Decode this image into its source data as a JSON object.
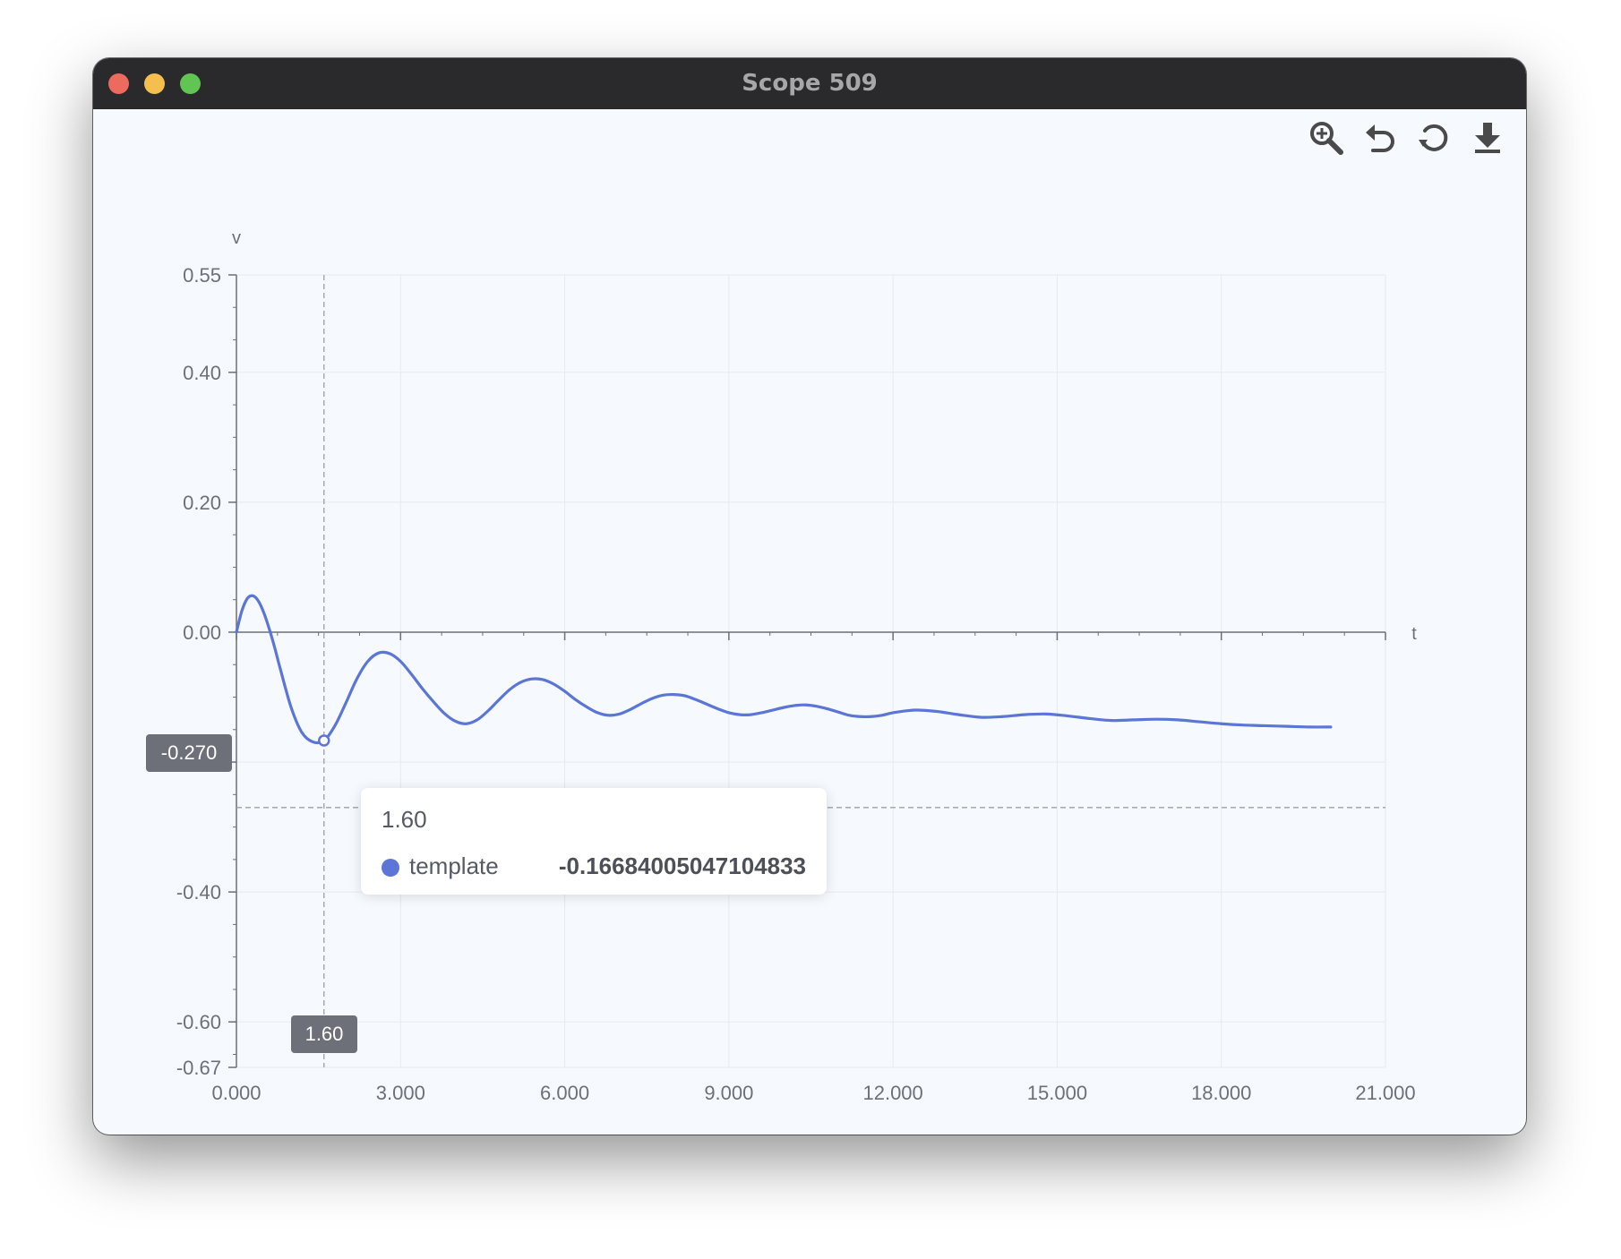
{
  "window": {
    "title": "Scope 509"
  },
  "toolbar": {
    "icons": [
      "zoom-in-icon",
      "undo-icon",
      "restore-icon",
      "download-icon"
    ]
  },
  "tooltip": {
    "title": "1.60",
    "series_name": "template",
    "value": "-0.16684005047104833"
  },
  "crosshair": {
    "x_label": "1.60",
    "y_label": "-0.270",
    "x_value": 1.6,
    "y_value": -0.27
  },
  "colors": {
    "series": "#5b76d6",
    "axis": "#6e7079",
    "titlebar": "#2a2a2c",
    "background": "#f6f9fd"
  },
  "chart_data": {
    "type": "line",
    "xlabel": "t",
    "ylabel": "v",
    "xlim": [
      0,
      21
    ],
    "ylim": [
      -0.67,
      0.55
    ],
    "x_ticks": [
      0,
      3,
      6,
      9,
      12,
      15,
      18,
      21
    ],
    "x_tick_labels": [
      "0.000",
      "3.000",
      "6.000",
      "9.000",
      "12.000",
      "15.000",
      "18.000",
      "21.000"
    ],
    "y_ticks": [
      0.55,
      0.4,
      0.2,
      0.0,
      -0.2,
      -0.4,
      -0.6,
      -0.67
    ],
    "y_tick_labels": [
      "0.55",
      "0.40",
      "0.20",
      "0.00",
      "-0.20",
      "-0.40",
      "-0.60",
      "-0.67"
    ],
    "grid": true,
    "series": [
      {
        "name": "template",
        "x": [
          0,
          0.1,
          0.2,
          0.3,
          0.4,
          0.5,
          0.6,
          0.7,
          0.8,
          1.0,
          1.2,
          1.4,
          1.6,
          1.8,
          2.0,
          2.2,
          2.4,
          2.6,
          2.8,
          3.0,
          3.2,
          3.4,
          3.6,
          3.8,
          4.0,
          4.2,
          4.4,
          4.6,
          4.8,
          5.0,
          5.2,
          5.4,
          5.6,
          5.8,
          6.0,
          6.2,
          6.4,
          6.6,
          6.8,
          7.0,
          7.2,
          7.4,
          7.6,
          7.8,
          8.0,
          8.2,
          8.4,
          8.6,
          8.8,
          9.0,
          9.2,
          9.4,
          9.6,
          9.8,
          10.0,
          10.2,
          10.4,
          10.6,
          10.8,
          11.0,
          11.2,
          11.4,
          11.6,
          11.8,
          12.0,
          12.4,
          12.8,
          13.2,
          13.6,
          14.0,
          14.4,
          14.8,
          15.2,
          15.6,
          16.0,
          16.4,
          16.8,
          17.2,
          17.6,
          18.0,
          18.4,
          18.8,
          19.2,
          19.6,
          20.0
        ],
        "y": [
          0.0,
          0.033,
          0.052,
          0.056,
          0.048,
          0.03,
          0.005,
          -0.024,
          -0.056,
          -0.116,
          -0.155,
          -0.169,
          -0.167,
          -0.144,
          -0.109,
          -0.072,
          -0.045,
          -0.032,
          -0.033,
          -0.045,
          -0.065,
          -0.087,
          -0.107,
          -0.125,
          -0.137,
          -0.141,
          -0.135,
          -0.121,
          -0.104,
          -0.088,
          -0.077,
          -0.072,
          -0.073,
          -0.08,
          -0.091,
          -0.104,
          -0.115,
          -0.124,
          -0.128,
          -0.126,
          -0.119,
          -0.11,
          -0.102,
          -0.097,
          -0.096,
          -0.098,
          -0.104,
          -0.111,
          -0.118,
          -0.124,
          -0.127,
          -0.127,
          -0.124,
          -0.12,
          -0.116,
          -0.113,
          -0.112,
          -0.114,
          -0.118,
          -0.123,
          -0.128,
          -0.13,
          -0.13,
          -0.128,
          -0.124,
          -0.12,
          -0.122,
          -0.127,
          -0.131,
          -0.13,
          -0.127,
          -0.126,
          -0.129,
          -0.133,
          -0.136,
          -0.135,
          -0.134,
          -0.135,
          -0.138,
          -0.141,
          -0.143,
          -0.144,
          -0.145,
          -0.146,
          -0.146
        ]
      }
    ],
    "highlight_point": {
      "x": 1.6,
      "y": -0.16684005047104833
    }
  }
}
